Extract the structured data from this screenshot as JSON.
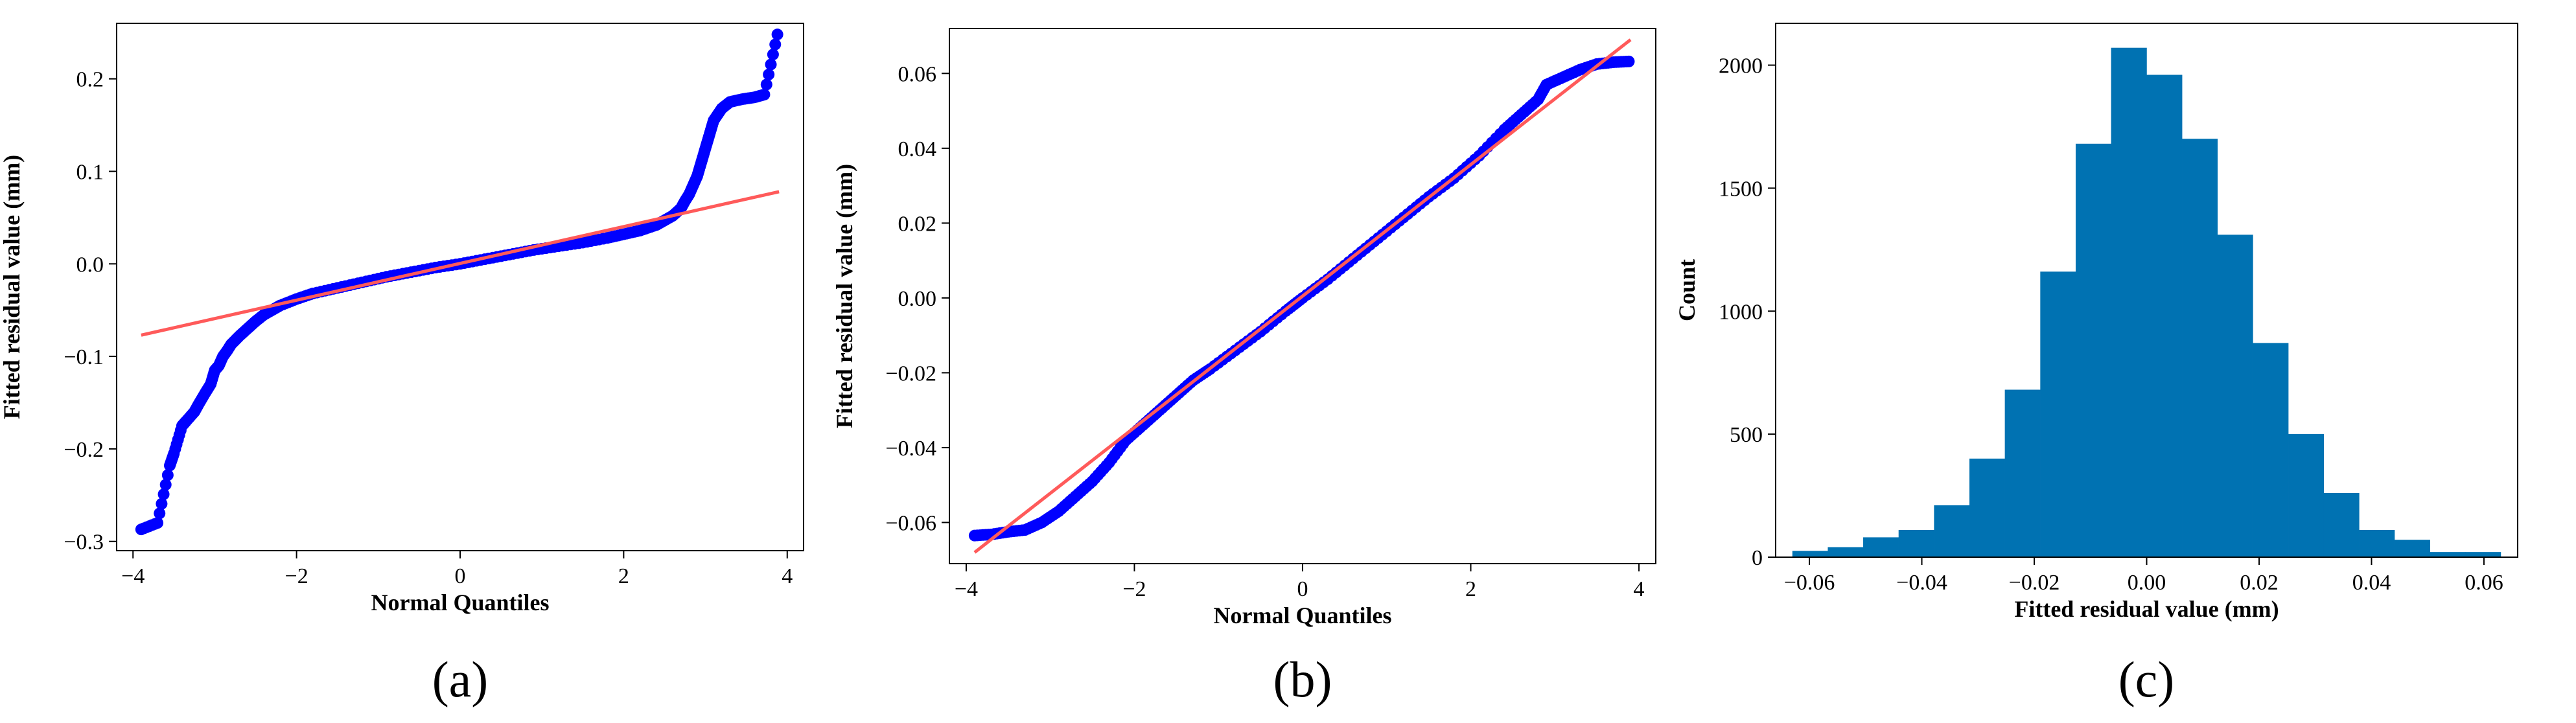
{
  "chart_data": [
    {
      "type": "scatter",
      "caption": "(a)",
      "title": "",
      "xlabel": "Normal Quantiles",
      "ylabel": "Fitted residual value (mm)",
      "xlim": [
        -4.2,
        4.2
      ],
      "ylim": [
        -0.31,
        0.26
      ],
      "xticks": [
        -4,
        -2,
        0,
        2,
        4
      ],
      "yticks": [
        -0.3,
        -0.2,
        -0.1,
        0.0,
        0.1,
        0.2
      ],
      "ytick_labels": [
        "−0.3",
        "−0.2",
        "−0.1",
        "0.0",
        "0.1",
        "0.2"
      ],
      "xtick_labels": [
        "−4",
        "−2",
        "0",
        "2",
        "4"
      ],
      "grid": false,
      "marker_color": "#0000ff",
      "line_color": "#ff5a5a",
      "reference_line": {
        "x": [
          -3.9,
          3.9
        ],
        "y": [
          -0.077,
          0.078
        ]
      },
      "points": {
        "x": [
          -3.9,
          -3.7,
          -3.55,
          -3.5,
          -3.4,
          -3.35,
          -3.25,
          -3.2,
          -3.12,
          -3.05,
          -3.0,
          -2.95,
          -2.9,
          -2.85,
          -2.8,
          -2.7,
          -2.6,
          -2.5,
          -2.4,
          -2.3,
          -2.2,
          -2.0,
          -1.8,
          -1.5,
          -1.2,
          -0.9,
          -0.6,
          -0.3,
          0.0,
          0.3,
          0.6,
          0.9,
          1.2,
          1.5,
          1.8,
          2.0,
          2.2,
          2.4,
          2.5,
          2.6,
          2.7,
          2.75,
          2.8,
          2.85,
          2.9,
          2.95,
          3.0,
          3.05,
          3.1,
          3.2,
          3.3,
          3.45,
          3.6,
          3.72,
          3.88
        ],
        "y": [
          -0.287,
          -0.28,
          -0.218,
          -0.205,
          -0.175,
          -0.17,
          -0.16,
          -0.152,
          -0.14,
          -0.13,
          -0.115,
          -0.11,
          -0.1,
          -0.094,
          -0.087,
          -0.078,
          -0.07,
          -0.062,
          -0.055,
          -0.05,
          -0.045,
          -0.038,
          -0.032,
          -0.026,
          -0.02,
          -0.014,
          -0.009,
          -0.004,
          0.0,
          0.005,
          0.01,
          0.015,
          0.019,
          0.023,
          0.028,
          0.032,
          0.036,
          0.042,
          0.047,
          0.052,
          0.06,
          0.068,
          0.075,
          0.085,
          0.095,
          0.11,
          0.125,
          0.14,
          0.155,
          0.168,
          0.175,
          0.178,
          0.18,
          0.183,
          0.248
        ]
      }
    },
    {
      "type": "scatter",
      "caption": "(b)",
      "title": "",
      "xlabel": "Normal Quantiles",
      "ylabel": "Fitted residual value (mm)",
      "xlim": [
        -4.2,
        4.2
      ],
      "ylim": [
        -0.071,
        0.072
      ],
      "xticks": [
        -4,
        -2,
        0,
        2,
        4
      ],
      "yticks": [
        -0.06,
        -0.04,
        -0.02,
        0.0,
        0.02,
        0.04,
        0.06
      ],
      "ytick_labels": [
        "−0.06",
        "−0.04",
        "−0.02",
        "0.00",
        "0.02",
        "0.04",
        "0.06"
      ],
      "xtick_labels": [
        "−4",
        "−2",
        "0",
        "2",
        "4"
      ],
      "grid": false,
      "marker_color": "#0000ff",
      "line_color": "#ff5a5a",
      "reference_line": {
        "x": [
          -3.9,
          3.9
        ],
        "y": [
          -0.068,
          0.069
        ]
      },
      "points": {
        "x": [
          -3.9,
          -3.7,
          -3.5,
          -3.3,
          -3.1,
          -2.9,
          -2.7,
          -2.5,
          -2.3,
          -2.1,
          -1.9,
          -1.7,
          -1.5,
          -1.3,
          -1.1,
          -0.8,
          -0.5,
          -0.2,
          0.0,
          0.3,
          0.6,
          0.9,
          1.2,
          1.5,
          1.8,
          2.1,
          2.4,
          2.6,
          2.8,
          2.9,
          3.1,
          3.3,
          3.5,
          3.7,
          3.88
        ],
        "y": [
          -0.0635,
          -0.0632,
          -0.0625,
          -0.062,
          -0.06,
          -0.057,
          -0.053,
          -0.049,
          -0.044,
          -0.038,
          -0.034,
          -0.03,
          -0.026,
          -0.022,
          -0.019,
          -0.014,
          -0.009,
          -0.0035,
          0.0,
          0.005,
          0.0105,
          0.016,
          0.0215,
          0.027,
          0.032,
          0.038,
          0.045,
          0.049,
          0.053,
          0.057,
          0.059,
          0.061,
          0.0625,
          0.063,
          0.0632
        ]
      }
    },
    {
      "type": "bar",
      "caption": "(c)",
      "title": "",
      "xlabel": "Fitted residual value (mm)",
      "ylabel": "Count",
      "xlim": [
        -0.066,
        0.066
      ],
      "ylim": [
        0,
        2170
      ],
      "xticks": [
        -0.06,
        -0.04,
        -0.02,
        0.0,
        0.02,
        0.04,
        0.06
      ],
      "xtick_labels": [
        "−0.06",
        "−0.04",
        "−0.02",
        "0.00",
        "0.02",
        "0.04",
        "0.06"
      ],
      "yticks": [
        0,
        500,
        1000,
        1500,
        2000
      ],
      "ytick_labels": [
        "0",
        "500",
        "1000",
        "1500",
        "2000"
      ],
      "grid": false,
      "bar_color": "#0072b2",
      "bin_edges": [
        -0.063,
        -0.0567,
        -0.0504,
        -0.0441,
        -0.0378,
        -0.0315,
        -0.0252,
        -0.0189,
        -0.0126,
        -0.0063,
        0.0,
        0.0063,
        0.0126,
        0.0189,
        0.0252,
        0.0315,
        0.0378,
        0.0441,
        0.0504,
        0.0567,
        0.063
      ],
      "counts": [
        25,
        40,
        80,
        110,
        210,
        400,
        680,
        1160,
        1680,
        2070,
        1960,
        1700,
        1310,
        870,
        500,
        260,
        110,
        70,
        20,
        20
      ]
    }
  ]
}
